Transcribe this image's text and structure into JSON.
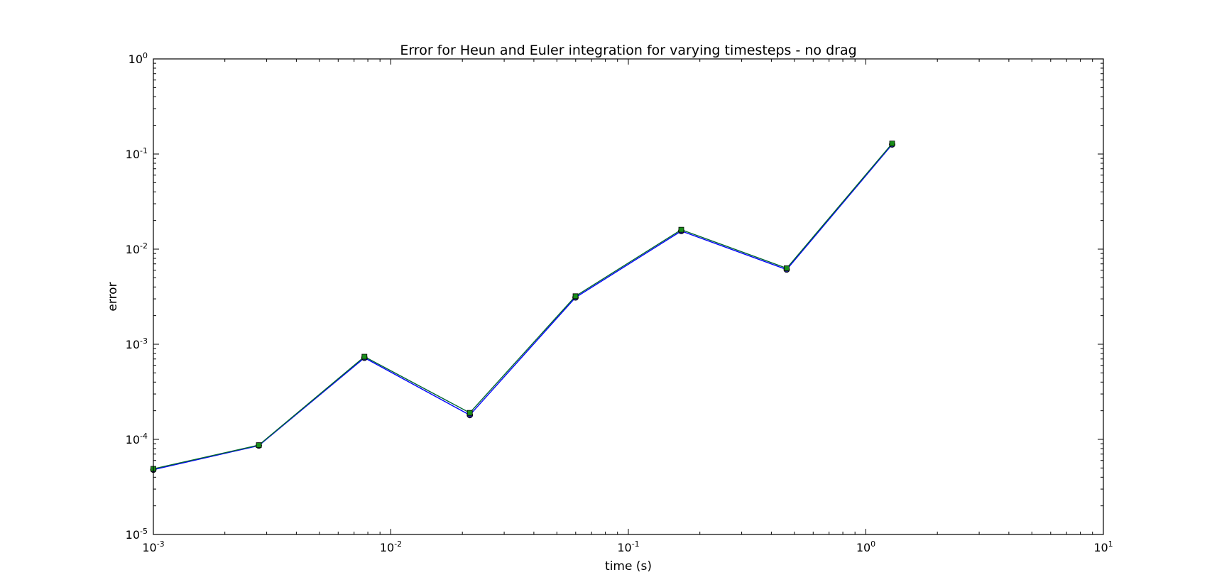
{
  "chart_data": {
    "type": "line",
    "title": "Error for Heun and Euler integration for varying timesteps - no drag",
    "xlabel": "time (s)",
    "ylabel": "error",
    "x_scale": "log",
    "y_scale": "log",
    "xlim": [
      0.001,
      10
    ],
    "ylim": [
      1e-05,
      1
    ],
    "grid": false,
    "legend": "none",
    "x_ticks": [
      {
        "base": "10",
        "exp": "-3",
        "value": 0.001
      },
      {
        "base": "10",
        "exp": "-2",
        "value": 0.01
      },
      {
        "base": "10",
        "exp": "-1",
        "value": 0.1
      },
      {
        "base": "10",
        "exp": "0",
        "value": 1
      },
      {
        "base": "10",
        "exp": "1",
        "value": 10
      }
    ],
    "y_ticks": [
      {
        "base": "10",
        "exp": "0",
        "value": 1
      },
      {
        "base": "10",
        "exp": "-1",
        "value": 0.1
      },
      {
        "base": "10",
        "exp": "-2",
        "value": 0.01
      },
      {
        "base": "10",
        "exp": "-3",
        "value": 0.001
      },
      {
        "base": "10",
        "exp": "-4",
        "value": 0.0001
      },
      {
        "base": "10",
        "exp": "-5",
        "value": 1e-05
      }
    ],
    "series": [
      {
        "marker": "circle",
        "color": "#1f1f8f",
        "line_color": "#0000ff",
        "x": [
          0.001,
          0.00278,
          0.00774,
          0.0215,
          0.0599,
          0.167,
          0.464,
          1.29
        ],
        "y": [
          4.8e-05,
          8.6e-05,
          0.00072,
          0.00018,
          0.0031,
          0.0155,
          0.0061,
          0.126
        ]
      },
      {
        "marker": "square",
        "color": "#1a8f1a",
        "line_color": "#006633",
        "x": [
          0.001,
          0.00278,
          0.00774,
          0.0215,
          0.0599,
          0.167,
          0.464,
          1.29
        ],
        "y": [
          4.9e-05,
          8.7e-05,
          0.00074,
          0.00019,
          0.0032,
          0.016,
          0.0063,
          0.129
        ]
      }
    ]
  }
}
